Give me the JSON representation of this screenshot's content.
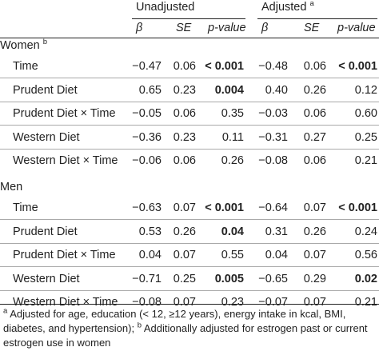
{
  "header": {
    "group1": "Unadjusted",
    "group2": "Adjusted",
    "group2_marker": "a",
    "cols": [
      "β",
      "SE",
      "p-value",
      "β",
      "SE",
      "p-value"
    ]
  },
  "sections": [
    {
      "label": "Women",
      "marker": "b",
      "rows": [
        {
          "name": "Time",
          "u_beta": "−0.47",
          "u_se": "0.06",
          "u_p": "< 0.001",
          "u_p_bold": true,
          "a_beta": "−0.48",
          "a_se": "0.06",
          "a_p": "< 0.001",
          "a_p_bold": true
        },
        {
          "name": "Prudent Diet",
          "u_beta": "0.65",
          "u_se": "0.23",
          "u_p": "0.004",
          "u_p_bold": true,
          "a_beta": "0.40",
          "a_se": "0.26",
          "a_p": "0.12",
          "a_p_bold": false
        },
        {
          "name": "Prudent Diet × Time",
          "u_beta": "−0.05",
          "u_se": "0.06",
          "u_p": "0.35",
          "u_p_bold": false,
          "a_beta": "−0.03",
          "a_se": "0.06",
          "a_p": "0.60",
          "a_p_bold": false
        },
        {
          "name": "Western Diet",
          "u_beta": "−0.36",
          "u_se": "0.23",
          "u_p": "0.11",
          "u_p_bold": false,
          "a_beta": "−0.31",
          "a_se": "0.27",
          "a_p": "0.25",
          "a_p_bold": false
        },
        {
          "name": "Western Diet × Time",
          "u_beta": "−0.06",
          "u_se": "0.06",
          "u_p": "0.26",
          "u_p_bold": false,
          "a_beta": "−0.08",
          "a_se": "0.06",
          "a_p": "0.21",
          "a_p_bold": false
        }
      ]
    },
    {
      "label": "Men",
      "marker": "",
      "rows": [
        {
          "name": "Time",
          "u_beta": "−0.63",
          "u_se": "0.07",
          "u_p": "< 0.001",
          "u_p_bold": true,
          "a_beta": "−0.64",
          "a_se": "0.07",
          "a_p": "< 0.001",
          "a_p_bold": true
        },
        {
          "name": "Prudent Diet",
          "u_beta": "0.53",
          "u_se": "0.26",
          "u_p": "0.04",
          "u_p_bold": true,
          "a_beta": "0.31",
          "a_se": "0.26",
          "a_p": "0.24",
          "a_p_bold": false
        },
        {
          "name": "Prudent Diet × Time",
          "u_beta": "0.04",
          "u_se": "0.07",
          "u_p": "0.55",
          "u_p_bold": false,
          "a_beta": "0.04",
          "a_se": "0.07",
          "a_p": "0.56",
          "a_p_bold": false
        },
        {
          "name": "Western Diet",
          "u_beta": "−0.71",
          "u_se": "0.25",
          "u_p": "0.005",
          "u_p_bold": true,
          "a_beta": "−0.65",
          "a_se": "0.29",
          "a_p": "0.02",
          "a_p_bold": true
        },
        {
          "name": "Western Diet × Time",
          "u_beta": "−0.08",
          "u_se": "0.07",
          "u_p": "0.23",
          "u_p_bold": false,
          "a_beta": "−0.07",
          "a_se": "0.07",
          "a_p": "0.21",
          "a_p_bold": false
        }
      ]
    }
  ],
  "footnote": {
    "marker_a": "a",
    "text_a": " Adjusted for age, education (< 12, ≥12 years), energy intake in kcal, BMI, diabetes, and hypertension);",
    "marker_b": "b",
    "text_b": " Additionally adjusted for estrogen past or current estrogen use in women"
  }
}
